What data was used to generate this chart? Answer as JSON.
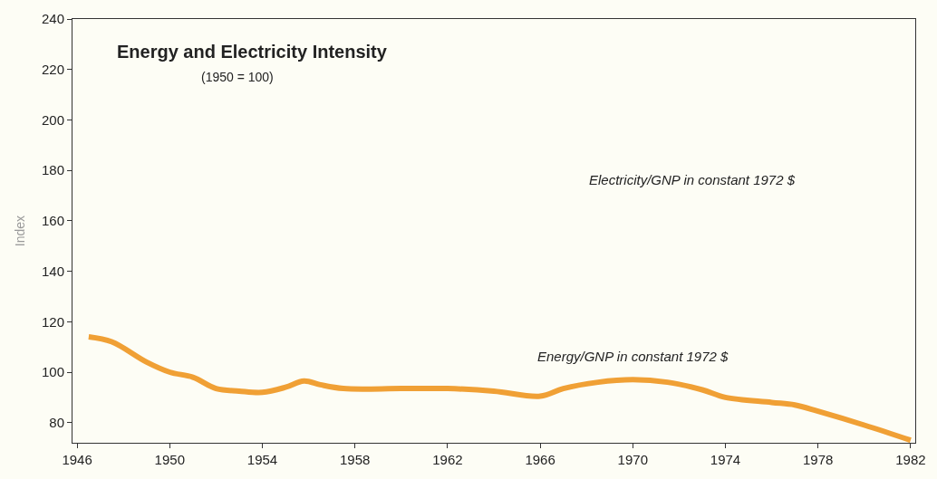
{
  "chart_data": {
    "type": "line",
    "title": "Energy and Electricity Intensity",
    "subtitle": "(1950 = 100)",
    "ylabel": "Index",
    "annotations": [
      "Electricity/GNP in constant 1972 $"
    ],
    "x": [
      1946.5,
      1947.5,
      1949,
      1950,
      1951,
      1952,
      1953,
      1954,
      1955,
      1955.8,
      1956.5,
      1957.5,
      1960,
      1962,
      1964,
      1966,
      1967,
      1968.5,
      1970,
      1971.5,
      1973,
      1974,
      1976,
      1977,
      1978,
      1980,
      1982
    ],
    "series": [
      {
        "name": "Energy/GNP in constant 1972 $",
        "color": "#f0a035",
        "values": [
          114,
          112,
          104,
          100,
          98,
          93.5,
          92.5,
          92,
          94,
          96.5,
          95,
          93.5,
          93.5,
          93.5,
          92.5,
          90.5,
          93.5,
          96,
          97,
          96,
          93,
          90,
          88,
          87,
          84.5,
          79,
          73
        ]
      }
    ],
    "xlim": [
      1945.8,
      1982.2
    ],
    "xticks": [
      1946,
      1950,
      1954,
      1958,
      1962,
      1966,
      1970,
      1974,
      1978,
      1982
    ],
    "ylim": [
      72,
      240
    ],
    "yticks": [
      80,
      100,
      120,
      140,
      160,
      180,
      200,
      220,
      240
    ],
    "grid": false
  }
}
